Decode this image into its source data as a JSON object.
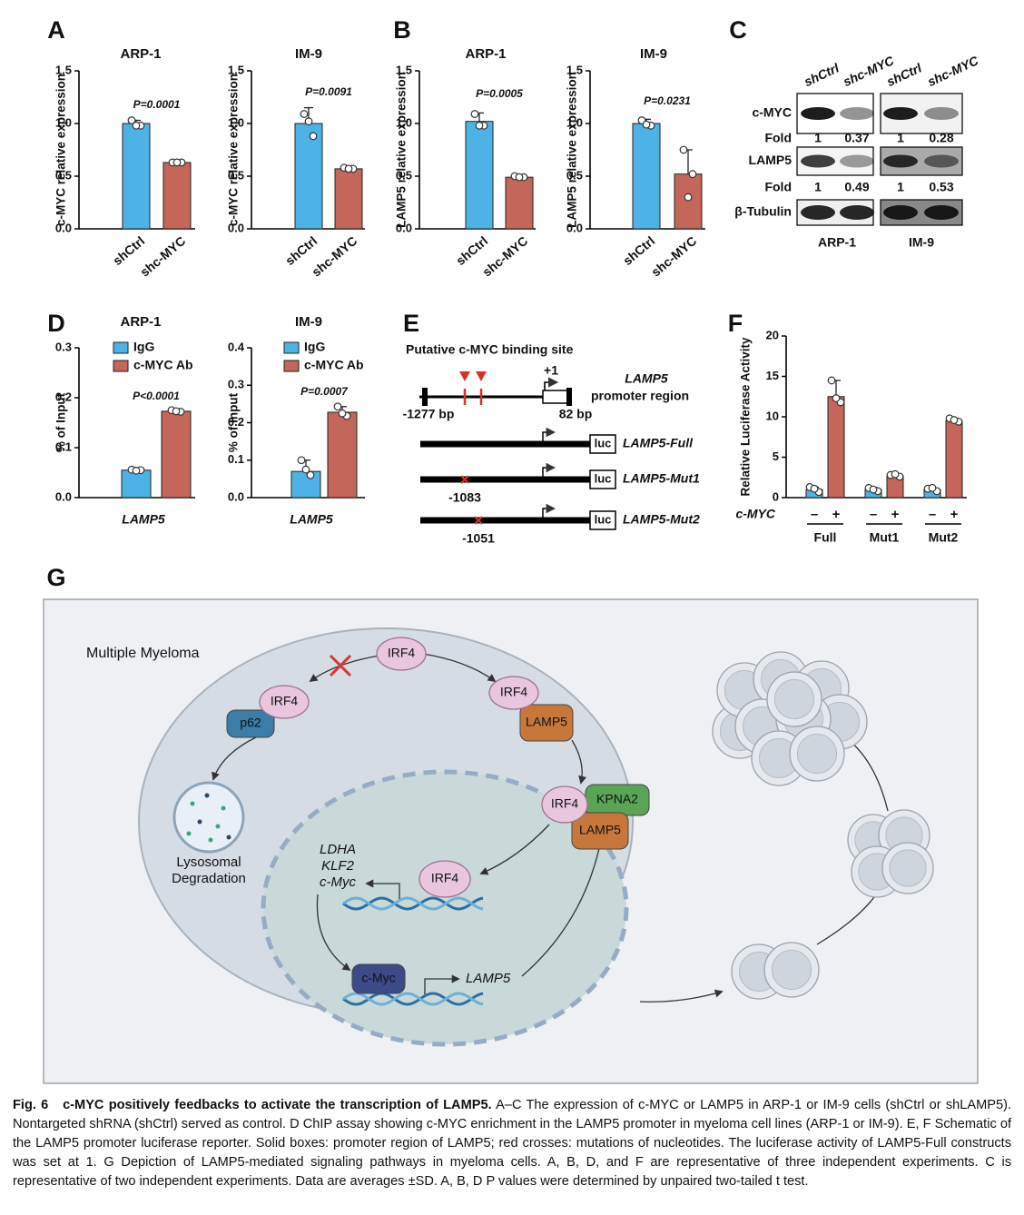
{
  "panel_labels": [
    "A",
    "B",
    "C",
    "D",
    "E",
    "F",
    "G"
  ],
  "chart_data": [
    {
      "type": "bar",
      "title": "ARP-1",
      "ylabel": "c-MYC relative expression",
      "categories": [
        "shCtrl",
        "shc-MYC"
      ],
      "colors": [
        "#4db3e6",
        "#c4665a"
      ],
      "series": [
        {
          "values": [
            1.0,
            0.63
          ],
          "errors": [
            0.03,
            0.01
          ],
          "points": [
            [
              1.03,
              0.98,
              0.98
            ],
            [
              0.63,
              0.63,
              0.63
            ]
          ]
        }
      ],
      "annotation": "P=0.0001",
      "ylim": [
        0,
        1.5
      ],
      "yticks": [
        {
          "value": 0,
          "label": "0.0"
        },
        0.5,
        {
          "value": 1,
          "label": "1.0"
        },
        1.5
      ]
    },
    {
      "type": "bar",
      "title": "IM-9",
      "ylabel": "c-MYC relative expression",
      "categories": [
        "shCtrl",
        "shc-MYC"
      ],
      "colors": [
        "#4db3e6",
        "#c4665a"
      ],
      "series": [
        {
          "values": [
            1.0,
            0.57
          ],
          "errors": [
            0.15,
            0.02
          ],
          "points": [
            [
              1.09,
              0.88,
              1.02
            ],
            [
              0.58,
              0.57,
              0.57
            ]
          ]
        }
      ],
      "annotation": "P=0.0091",
      "ylim": [
        0,
        1.5
      ],
      "yticks": [
        {
          "value": 0,
          "label": "0.0"
        },
        0.5,
        {
          "value": 1,
          "label": "1.0"
        },
        1.5
      ]
    },
    {
      "type": "bar",
      "title": "ARP-1",
      "ylabel": "LAMP5 relative expression",
      "categories": [
        "shCtrl",
        "shc-MYC"
      ],
      "colors": [
        "#4db3e6",
        "#c4665a"
      ],
      "series": [
        {
          "values": [
            1.02,
            0.49
          ],
          "errors": [
            0.08,
            0.01
          ],
          "points": [
            [
              1.09,
              0.98,
              0.98
            ],
            [
              0.5,
              0.49,
              0.49
            ]
          ]
        }
      ],
      "annotation": "P=0.0005",
      "ylim": [
        0,
        1.5
      ],
      "yticks": [
        {
          "value": 0,
          "label": "0.0"
        },
        0.5,
        {
          "value": 1,
          "label": "1.0"
        },
        1.5
      ]
    },
    {
      "type": "bar",
      "title": "IM-9",
      "ylabel": "LAMP5 relative expression",
      "categories": [
        "shCtrl",
        "shc-MYC"
      ],
      "colors": [
        "#4db3e6",
        "#c4665a"
      ],
      "series": [
        {
          "values": [
            1.0,
            0.52
          ],
          "errors": [
            0.04,
            0.23
          ],
          "points": [
            [
              1.03,
              0.98,
              0.99
            ],
            [
              0.75,
              0.52,
              0.3
            ]
          ]
        }
      ],
      "annotation": "P=0.0231",
      "ylim": [
        0,
        1.5
      ],
      "yticks": [
        {
          "value": 0,
          "label": "0.0"
        },
        0.5,
        {
          "value": 1,
          "label": "1.0"
        },
        1.5
      ]
    },
    {
      "type": "bar",
      "title": "ARP-1",
      "ylabel": "% of Input",
      "categories": [
        "LAMP5"
      ],
      "legend": "upper left",
      "series": [
        {
          "name": "IgG",
          "color": "#4db3e6",
          "values": [
            0.055
          ],
          "errors": [
            0.002
          ],
          "points": [
            [
              0.056,
              0.055,
              0.054
            ]
          ]
        },
        {
          "name": "c-MYC Ab",
          "color": "#c4665a",
          "values": [
            0.173
          ],
          "errors": [
            0.003
          ],
          "points": [
            [
              0.175,
              0.172,
              0.173
            ]
          ]
        }
      ],
      "annotation": "P<0.0001",
      "ylim": [
        0,
        0.3
      ],
      "yticks": [
        {
          "value": 0,
          "label": "0.0"
        },
        0.1,
        0.2,
        0.3
      ]
    },
    {
      "type": "bar",
      "title": "IM-9",
      "ylabel": "% of Input",
      "categories": [
        "LAMP5"
      ],
      "legend": "upper left",
      "series": [
        {
          "name": "IgG",
          "color": "#4db3e6",
          "values": [
            0.07
          ],
          "errors": [
            0.03
          ],
          "points": [
            [
              0.1,
              0.06,
              0.075
            ]
          ]
        },
        {
          "name": "c-MYC Ab",
          "color": "#c4665a",
          "values": [
            0.228
          ],
          "errors": [
            0.015
          ],
          "points": [
            [
              0.243,
              0.218,
              0.225
            ]
          ]
        }
      ],
      "annotation": "P=0.0007",
      "ylim": [
        0,
        0.4
      ],
      "yticks": [
        {
          "value": 0,
          "label": "0.0"
        },
        0.1,
        0.2,
        0.3,
        0.4
      ]
    },
    {
      "type": "bar",
      "ylabel": "Relative Luciferase Activity",
      "categories": [
        "Full",
        "Mut1",
        "Mut2"
      ],
      "series_label": "c-MYC",
      "series": [
        {
          "name": "–",
          "color": "#4db3e6",
          "values": [
            1.0,
            1.0,
            1.0
          ],
          "errors": [
            0.3,
            0.25,
            0.2
          ],
          "points": [
            [
              1.3,
              0.7,
              1.1
            ],
            [
              1.2,
              0.8,
              1.0
            ],
            [
              1.1,
              0.8,
              1.2
            ]
          ]
        },
        {
          "name": "+",
          "color": "#c4665a",
          "values": [
            12.5,
            2.7,
            9.5
          ],
          "errors": [
            2.0,
            0.2,
            0.3
          ],
          "points": [
            [
              14.5,
              11.8,
              12.3
            ],
            [
              2.8,
              2.6,
              2.9
            ],
            [
              9.8,
              9.4,
              9.6
            ]
          ]
        }
      ],
      "ylim": [
        0,
        20
      ],
      "yticks": [
        0,
        5,
        10,
        15,
        20
      ]
    }
  ],
  "blot": {
    "columns": [
      "shCtrl",
      "shc-MYC",
      "shCtrl",
      "shc-MYC"
    ],
    "rows": [
      "c-MYC",
      "LAMP5",
      "β-Tubulin"
    ],
    "fold_label": "Fold",
    "folds": [
      [
        1,
        0.37,
        1,
        0.28
      ],
      [
        1,
        0.49,
        1,
        0.53
      ]
    ],
    "cell_lines": [
      "ARP-1",
      "IM-9"
    ]
  },
  "schematic": {
    "title": "Putative c-MYC binding site",
    "tss": "+1",
    "gene": "LAMP5",
    "region": "promoter region",
    "start": "-1277 bp",
    "end": "82 bp",
    "reporter": "luc",
    "constructs": [
      "LAMP5-Full",
      "LAMP5-Mut1",
      "LAMP5-Mut2"
    ],
    "mutations": [
      "-1083",
      "-1051"
    ]
  },
  "diagram": {
    "title": "Multiple Myeloma",
    "nodes": [
      "IRF4",
      "IRF4",
      "p62",
      "IRF4",
      "LAMP5",
      "IRF4",
      "KPNA2",
      "LAMP5",
      "IRF4",
      "c-Myc"
    ],
    "lysosome_label": [
      "Lysosomal",
      "Degradation"
    ],
    "genes": [
      "LDHA",
      "KLF2",
      "c-Myc"
    ],
    "target_gene": "LAMP5"
  },
  "caption": {
    "label": "Fig. 6",
    "title": "c-MYC positively feedbacks to activate the transcription of LAMP5.",
    "text": "A–C The expression of c-MYC or LAMP5 in ARP-1 or IM-9 cells (shCtrl or shLAMP5). Nontargeted shRNA (shCtrl) served as control. D ChIP assay showing c-MYC enrichment in the LAMP5 promoter in myeloma cell lines (ARP-1 or IM-9). E, F Schematic of the LAMP5 promoter luciferase reporter. Solid boxes: promoter region of LAMP5; red crosses: mutations of nucleotides. The luciferase activity of LAMP5-Full constructs was set at 1. G Depiction of LAMP5-mediated signaling pathways in myeloma cells. A, B, D, and F are representative of three independent experiments. C is representative of two independent experiments. Data are averages ±SD. A, B, D P values were determined by unpaired two-tailed t test."
  }
}
